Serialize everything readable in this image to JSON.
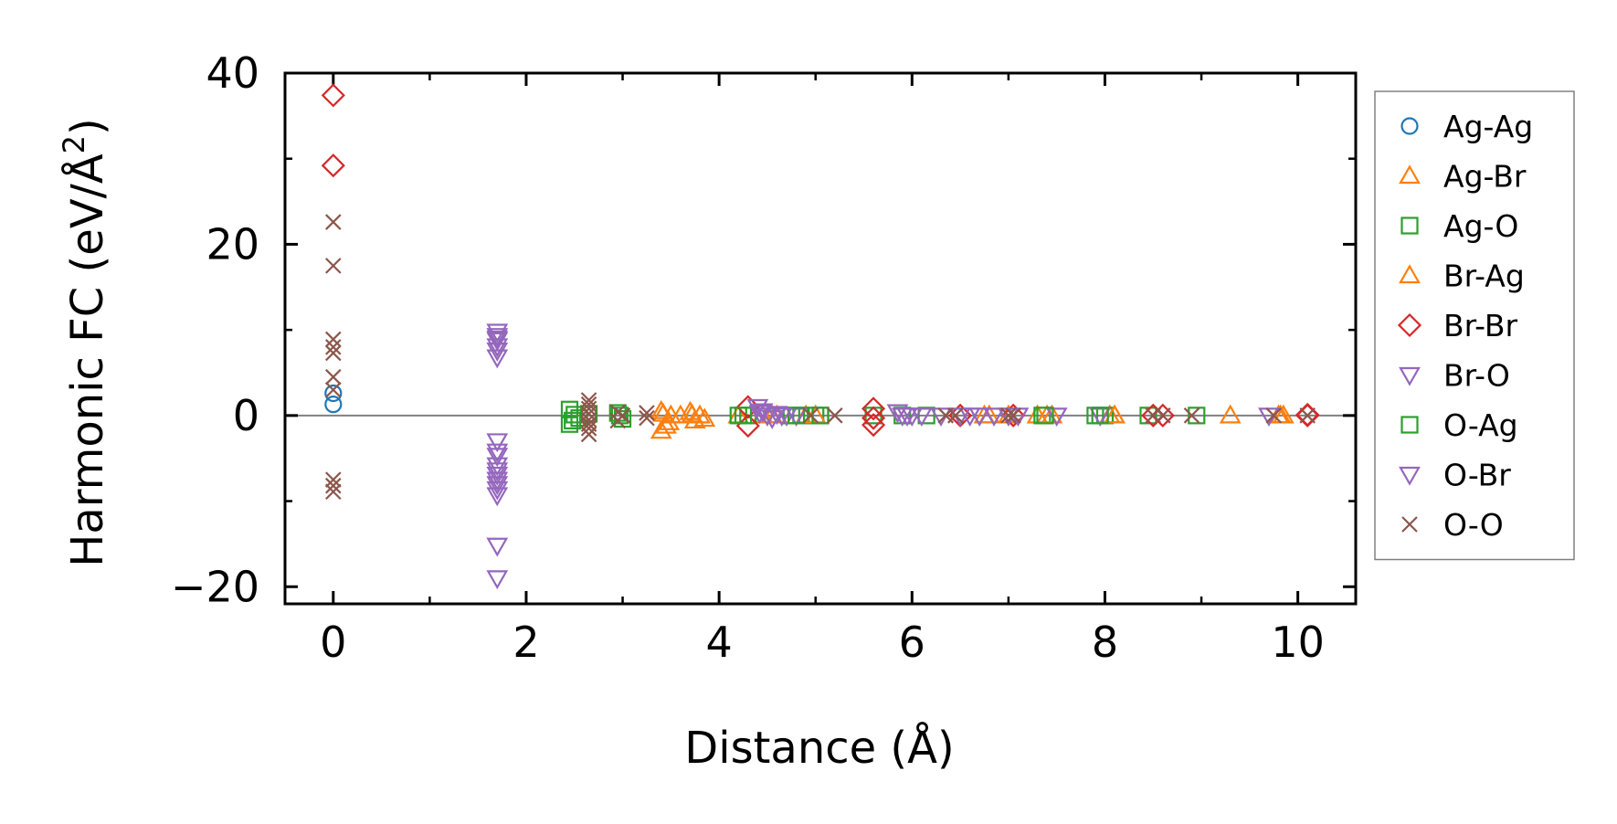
{
  "chart_data": {
    "type": "scatter",
    "xlabel": "Distance (Å)",
    "ylabel": "Harmonic FC (eV/Å",
    "ylabel_sup": "2",
    "ylabel_end": ")",
    "xlim": [
      -0.5,
      10.6
    ],
    "ylim": [
      -22,
      40
    ],
    "xticks": [
      0,
      2,
      4,
      6,
      8,
      10
    ],
    "xtick_labels": [
      "0",
      "2",
      "4",
      "6",
      "8",
      "10"
    ],
    "yticks": [
      -20,
      0,
      20,
      40
    ],
    "ytick_labels": [
      "−20",
      "0",
      "20",
      "40"
    ],
    "xminor": [
      1,
      3,
      5,
      7,
      9
    ],
    "yminor": [
      -10,
      10,
      30
    ],
    "grid": false,
    "zero_line": true,
    "legend_position": "right-outside",
    "series": [
      {
        "name": "Ag-Ag",
        "marker": "circle",
        "color": "#1f77b4",
        "x": [
          0,
          0
        ],
        "y": [
          2.6,
          1.3
        ]
      },
      {
        "name": "Ag-Br",
        "marker": "triangle-up",
        "color": "#ff7f0e",
        "x": [
          3.4,
          3.4,
          3.45,
          3.5,
          3.6,
          3.7,
          3.75,
          3.8,
          3.85,
          4.2,
          4.45,
          4.6,
          4.9,
          6.8,
          7.0,
          7.3,
          7.4,
          8.05,
          8.1,
          9.3,
          9.8,
          9.85
        ],
        "y": [
          0.5,
          -1.8,
          -1.2,
          0,
          0,
          0.4,
          -0.6,
          0,
          -0.4,
          0,
          0,
          0,
          0,
          0,
          0,
          0,
          0,
          0,
          0,
          0,
          0,
          0
        ]
      },
      {
        "name": "Ag-O",
        "marker": "square",
        "color": "#2ca02c",
        "x": [
          2.45,
          2.45,
          2.5,
          2.55,
          2.65,
          2.95,
          3.0,
          4.2,
          4.3,
          4.75,
          4.85,
          5.0,
          5.05,
          5.6,
          5.9,
          6.15,
          7.35,
          7.9,
          8.0,
          8.45,
          8.95
        ],
        "y": [
          0.7,
          -1.0,
          0.1,
          -0.3,
          0.2,
          0.3,
          -0.4,
          0,
          0,
          0,
          0,
          0,
          0,
          0,
          0,
          0,
          0,
          0,
          0,
          0,
          0
        ]
      },
      {
        "name": "Br-Ag",
        "marker": "triangle-up",
        "color": "#ff7f0e",
        "x": [
          3.42,
          3.48,
          3.72,
          4.55,
          5.0,
          6.75,
          7.45,
          8.1,
          9.82
        ],
        "y": [
          0.2,
          -0.8,
          0.1,
          0,
          0,
          0,
          0,
          0,
          0
        ]
      },
      {
        "name": "Br-Br",
        "marker": "diamond",
        "color": "#d62728",
        "x": [
          0,
          0,
          4.3,
          4.3,
          5.6,
          5.6,
          5.6,
          6.5,
          7.05,
          8.5,
          8.6,
          10.1,
          10.1
        ],
        "y": [
          37.4,
          29.2,
          1.0,
          -1.2,
          0.8,
          -0.3,
          -1.1,
          0,
          0,
          0,
          0,
          0,
          0.1
        ]
      },
      {
        "name": "Br-O",
        "marker": "triangle-down",
        "color": "#9467bd",
        "x": [
          1.7,
          1.7,
          1.7,
          1.7,
          1.7,
          1.7,
          1.7,
          1.7,
          1.7,
          1.7,
          1.7,
          1.7,
          1.7,
          1.7,
          1.7,
          1.7,
          1.7,
          4.4,
          4.45,
          4.5,
          4.55,
          4.6,
          4.7,
          4.8,
          5.85,
          5.9,
          6.0,
          6.1,
          6.3,
          6.5,
          6.7,
          6.85,
          7.0,
          7.5,
          7.95,
          9.7
        ],
        "y": [
          9.8,
          9.3,
          8.8,
          8.1,
          7.6,
          6.8,
          -3.0,
          -4.2,
          -4.7,
          -5.8,
          -6.4,
          -6.9,
          -7.5,
          -8.6,
          -9.3,
          -15.2,
          -19.0,
          1.0,
          0.5,
          0,
          -0.3,
          0.2,
          0,
          0,
          0.4,
          0,
          0,
          0,
          0,
          0,
          0,
          0,
          0,
          0,
          0,
          0
        ]
      },
      {
        "name": "O-Ag",
        "marker": "square",
        "color": "#2ca02c",
        "x": [
          2.48,
          2.97,
          4.25,
          4.8,
          5.05,
          7.38,
          7.95
        ],
        "y": [
          -0.6,
          0,
          0,
          0,
          0,
          0,
          0
        ]
      },
      {
        "name": "O-Br",
        "marker": "triangle-down",
        "color": "#9467bd",
        "x": [
          1.7,
          1.7,
          4.42,
          4.65,
          5.95,
          6.6,
          7.1
        ],
        "y": [
          9.0,
          -8.0,
          0.3,
          0,
          0,
          0,
          0
        ]
      },
      {
        "name": "O-O",
        "marker": "x",
        "color": "#8c564b",
        "x": [
          0,
          0,
          0,
          0,
          0,
          0,
          0,
          0,
          0,
          0,
          2.65,
          2.65,
          2.65,
          2.65,
          2.65,
          2.65,
          2.65,
          2.65,
          2.95,
          2.95,
          3.0,
          3.25,
          3.25,
          4.95,
          5.2,
          6.35,
          6.45,
          7.0,
          7.05,
          8.5,
          8.6,
          8.9,
          9.75,
          10.1
        ],
        "y": [
          22.6,
          17.5,
          8.9,
          8.0,
          7.3,
          4.5,
          3.0,
          -7.5,
          -8.2,
          -8.9,
          1.8,
          1.3,
          0.8,
          0.2,
          -0.5,
          -1.0,
          -1.5,
          -2.2,
          0.4,
          -0.6,
          0,
          0.3,
          -0.3,
          0,
          0,
          0,
          0,
          0,
          0,
          0,
          0,
          0,
          0,
          0
        ]
      }
    ]
  }
}
